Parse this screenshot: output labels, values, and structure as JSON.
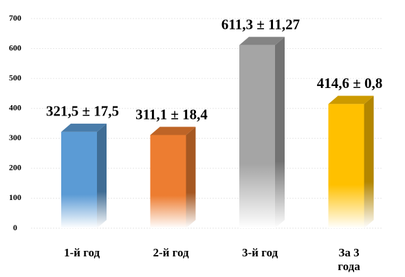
{
  "chart_data": {
    "type": "bar3d",
    "categories": [
      "1-й год",
      "2-й год",
      "3-й год",
      "За 3 года"
    ],
    "values": [
      321.5,
      311.1,
      611.3,
      414.6
    ],
    "value_labels": [
      "321,5  ± 17,5",
      "311,1 ± 18,4",
      "611,3 ± 11,27",
      "414,6 ± 0,8"
    ],
    "colors": [
      "#5b9bd5",
      "#ed7d31",
      "#a5a5a5",
      "#ffc000"
    ],
    "ylim": [
      0,
      700
    ],
    "yticks": [
      0,
      100,
      200,
      300,
      400,
      500,
      600,
      700
    ],
    "grid": true
  }
}
